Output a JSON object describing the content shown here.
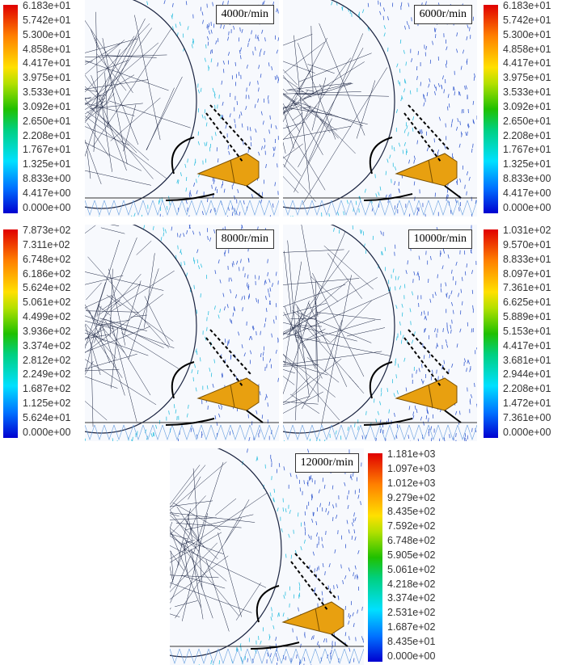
{
  "panels": [
    {
      "speed": "4000r/min",
      "colorbar_side": "left",
      "colorbar_labels": [
        "6.183e+01",
        "5.742e+01",
        "5.300e+01",
        "4.858e+01",
        "4.417e+01",
        "3.975e+01",
        "3.533e+01",
        "3.092e+01",
        "2.650e+01",
        "2.208e+01",
        "1.767e+01",
        "1.325e+01",
        "8.833e+00",
        "4.417e+00",
        "0.000e+00"
      ]
    },
    {
      "speed": "6000r/min",
      "colorbar_side": "right",
      "colorbar_labels": [
        "6.183e+01",
        "5.742e+01",
        "5.300e+01",
        "4.858e+01",
        "4.417e+01",
        "3.975e+01",
        "3.533e+01",
        "3.092e+01",
        "2.650e+01",
        "2.208e+01",
        "1.767e+01",
        "1.325e+01",
        "8.833e+00",
        "4.417e+00",
        "0.000e+00"
      ]
    },
    {
      "speed": "8000r/min",
      "colorbar_side": "left",
      "colorbar_labels": [
        "7.873e+02",
        "7.311e+02",
        "6.748e+02",
        "6.186e+02",
        "5.624e+02",
        "5.061e+02",
        "4.499e+02",
        "3.936e+02",
        "3.374e+02",
        "2.812e+02",
        "2.249e+02",
        "1.687e+02",
        "1.125e+02",
        "5.624e+01",
        "0.000e+00"
      ]
    },
    {
      "speed": "10000r/min",
      "colorbar_side": "right",
      "colorbar_labels": [
        "1.031e+02",
        "9.570e+01",
        "8.833e+01",
        "8.097e+01",
        "7.361e+01",
        "6.625e+01",
        "5.889e+01",
        "5.153e+01",
        "4.417e+01",
        "3.681e+01",
        "2.944e+01",
        "2.208e+01",
        "1.472e+01",
        "7.361e+00",
        "0.000e+00"
      ]
    },
    {
      "speed": "12000r/min",
      "colorbar_side": "right",
      "colorbar_labels": [
        "1.181e+03",
        "1.097e+03",
        "1.012e+03",
        "9.279e+02",
        "8.435e+02",
        "7.592e+02",
        "6.748e+02",
        "5.905e+02",
        "5.061e+02",
        "4.218e+02",
        "3.374e+02",
        "2.531e+02",
        "1.687e+02",
        "8.435e+01",
        "0.000e+00"
      ]
    }
  ],
  "colors": {
    "mesh": "#1a2340",
    "vectors": "#3a5fd0",
    "tool": "#e8a010"
  }
}
